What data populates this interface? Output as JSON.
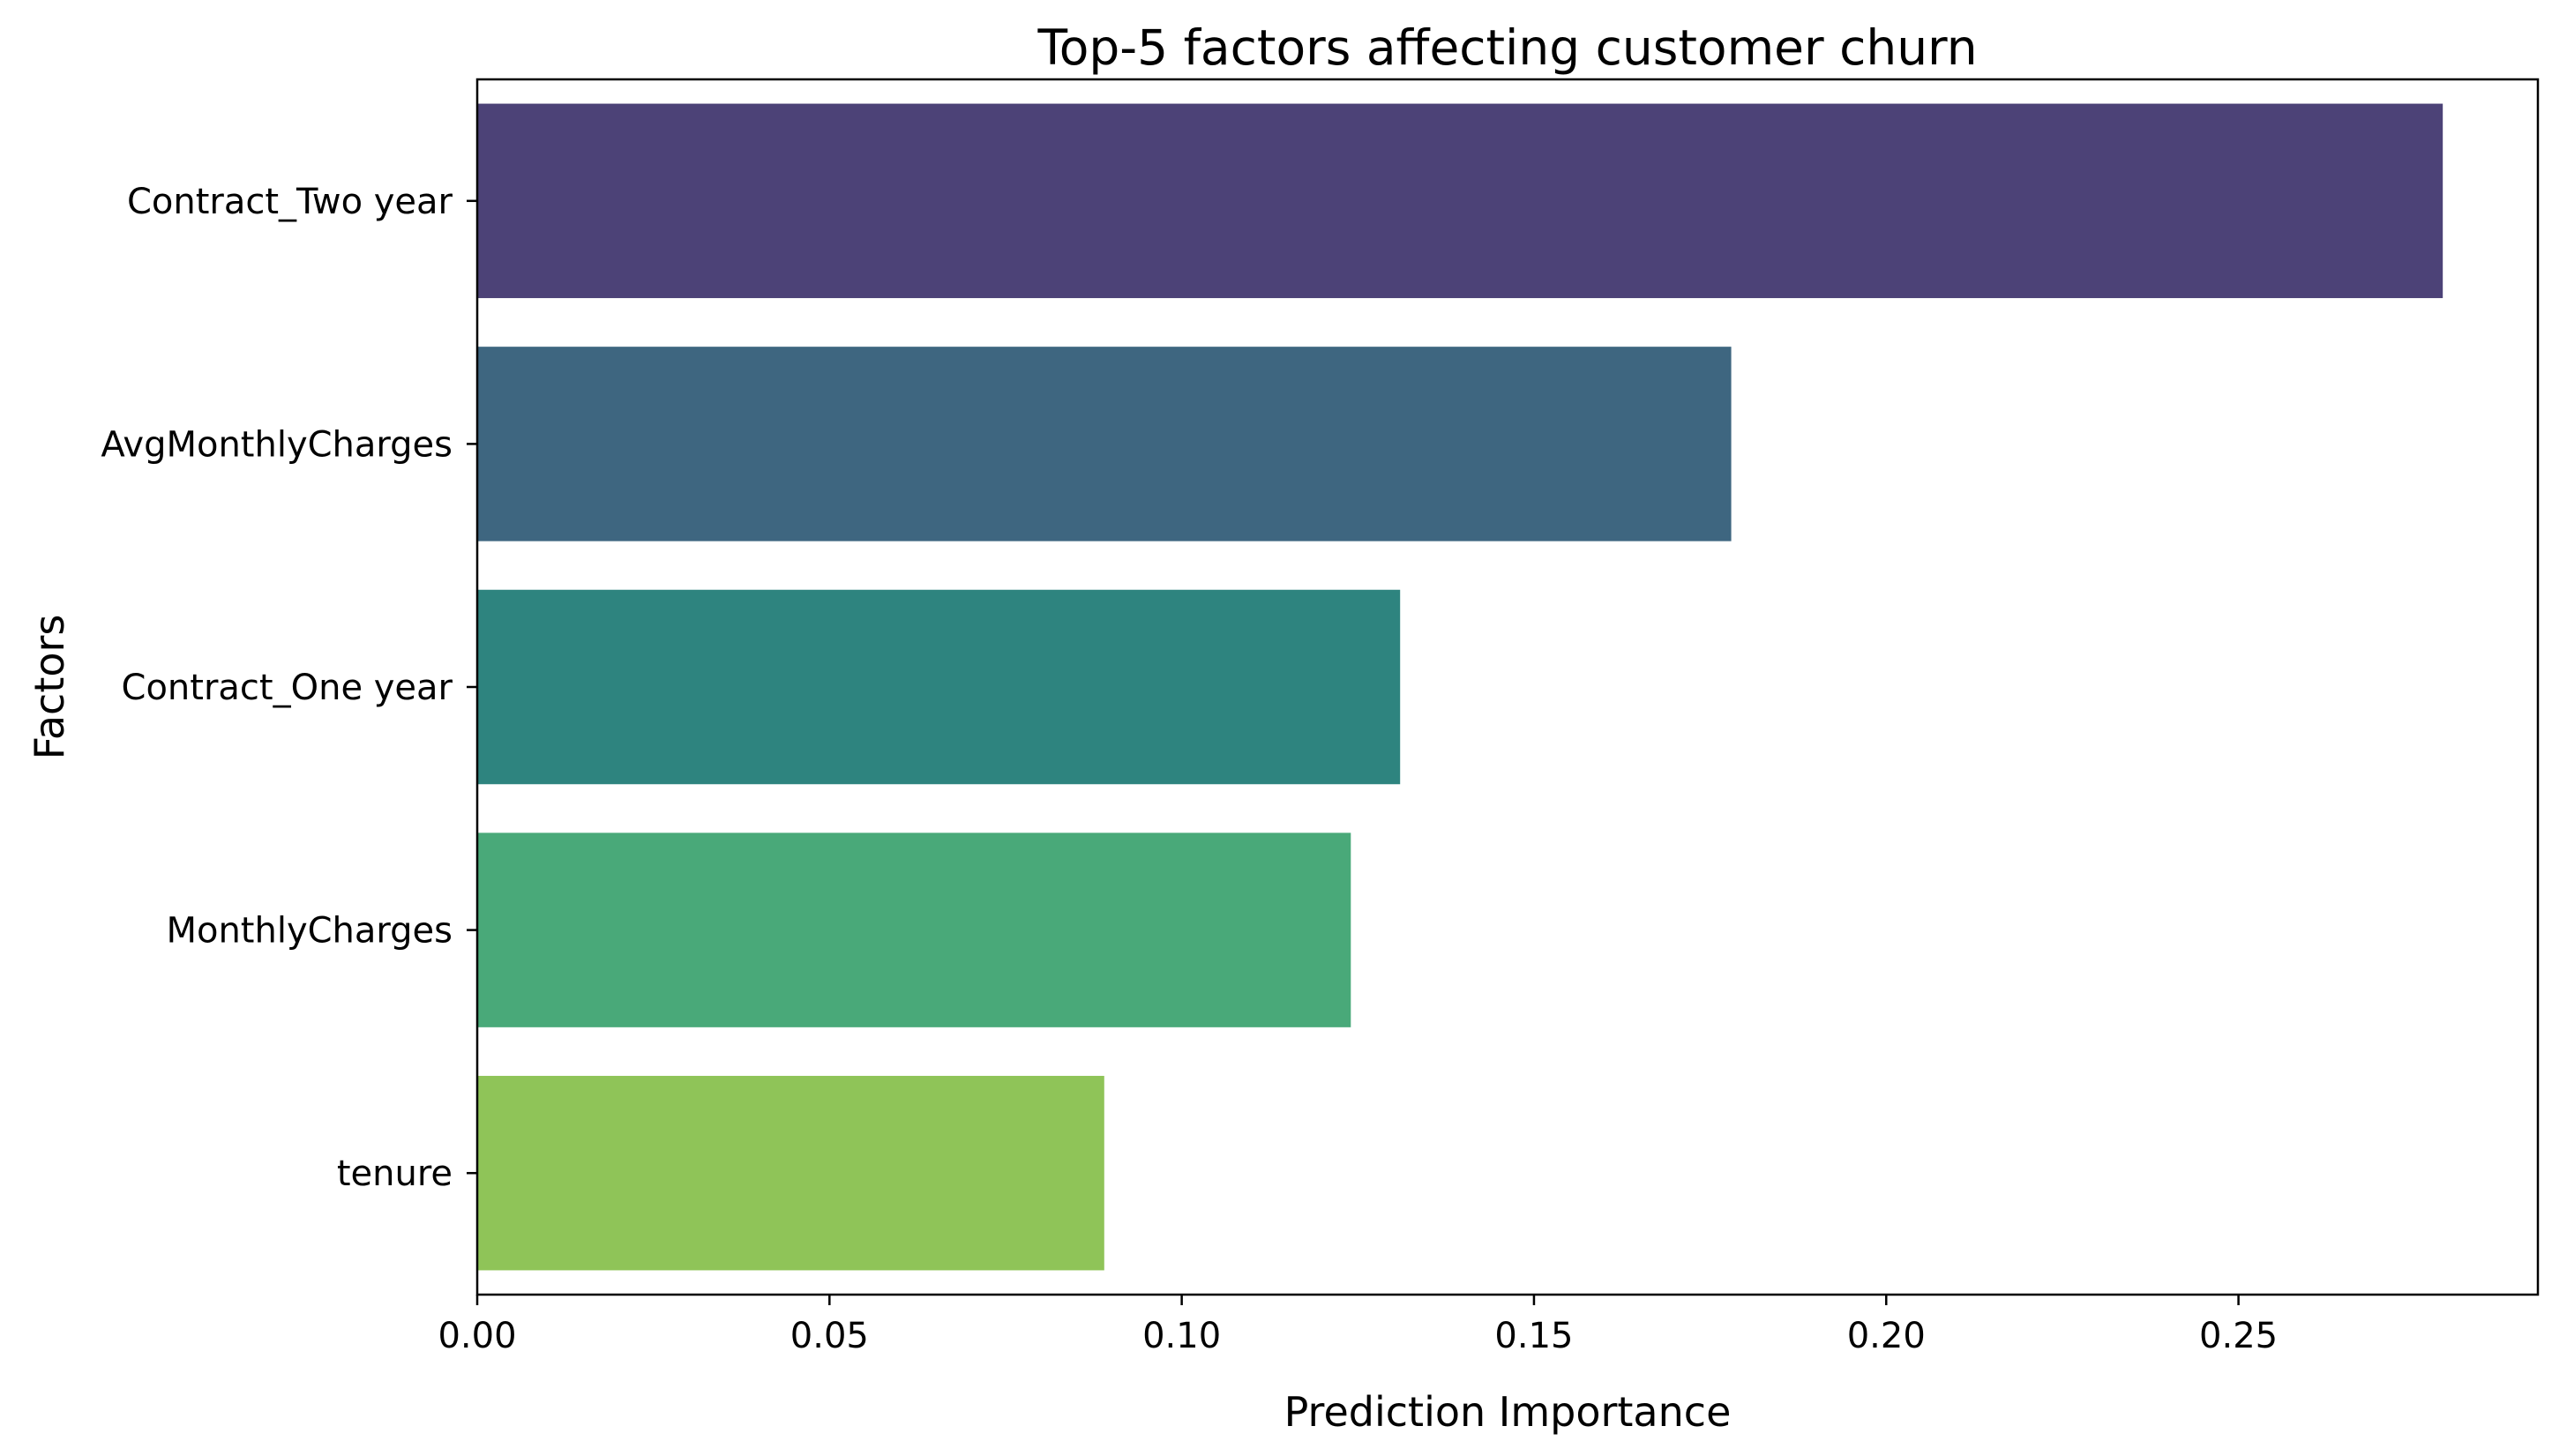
{
  "chart_data": {
    "type": "bar",
    "orientation": "horizontal",
    "title": "Top-5 factors affecting customer churn",
    "xlabel": "Prediction Importance",
    "ylabel": "Factors",
    "categories": [
      "Contract_Two year",
      "AvgMonthlyCharges",
      "Contract_One year",
      "MonthlyCharges",
      "tenure"
    ],
    "values": [
      0.279,
      0.178,
      0.131,
      0.124,
      0.089
    ],
    "colors": [
      "#4c4277",
      "#3e6680",
      "#2e847f",
      "#49a979",
      "#8fc458"
    ],
    "xlim": [
      0.0,
      0.2925
    ],
    "xticks": [
      0.0,
      0.05,
      0.1,
      0.15,
      0.2,
      0.25
    ],
    "xtick_labels": [
      "0.00",
      "0.05",
      "0.10",
      "0.15",
      "0.20",
      "0.25"
    ],
    "grid": false,
    "legend": "none"
  }
}
